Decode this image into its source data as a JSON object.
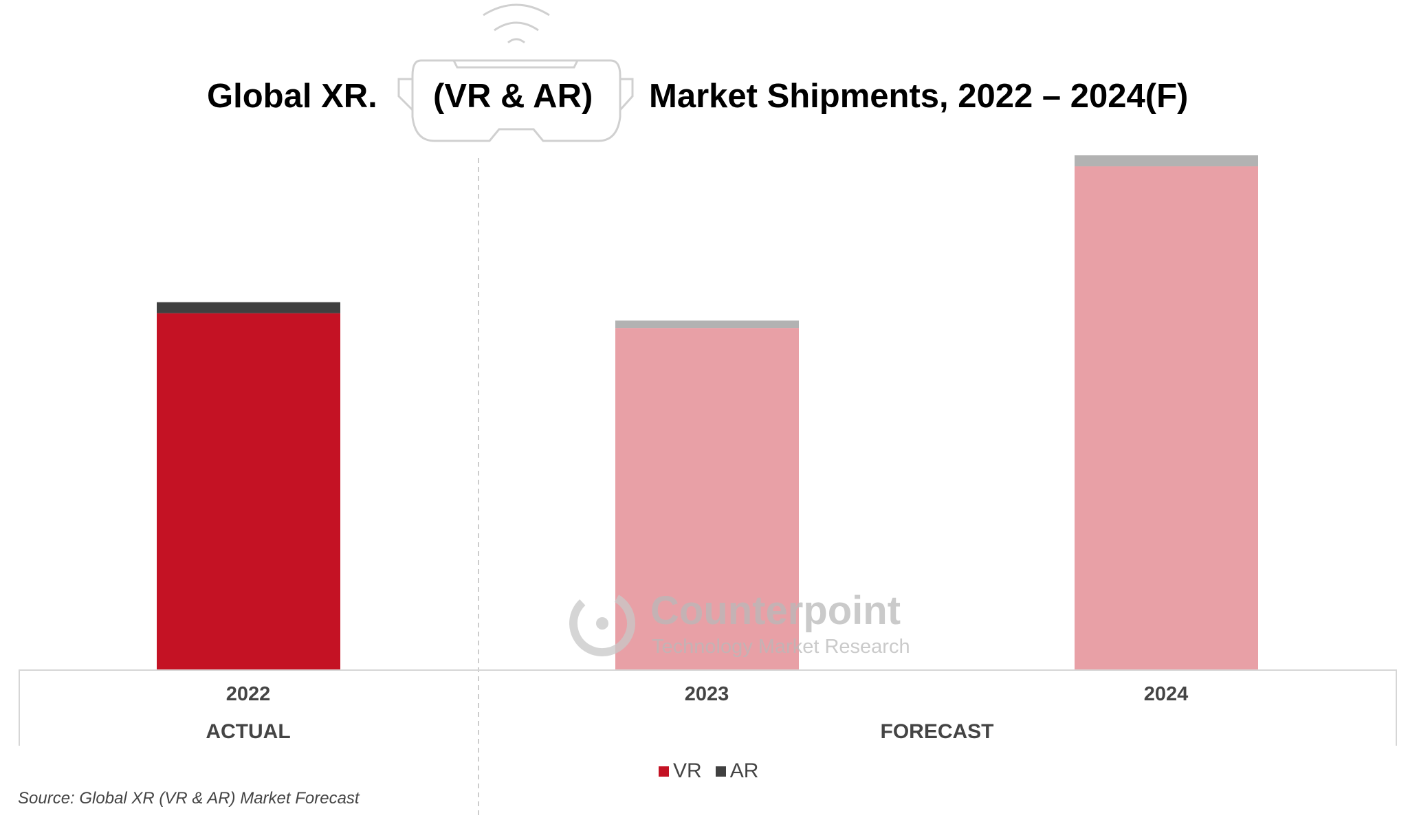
{
  "chart_data": {
    "type": "bar",
    "stacked": true,
    "title_parts": [
      "Global XR.",
      "(VR & AR)",
      "Market Shipments, 2022 – 2024(F)"
    ],
    "categories": [
      "2022",
      "2023",
      "2024"
    ],
    "series": [
      {
        "name": "VR",
        "values": [
          97,
          93,
          137
        ]
      },
      {
        "name": "AR",
        "values": [
          3,
          2,
          3
        ]
      }
    ],
    "ylim": [
      0,
      140
    ],
    "grid": false,
    "period_labels": [
      "ACTUAL",
      "FORECAST"
    ],
    "legend_position": "bottom",
    "colors": {
      "VR_actual": "#c41224",
      "AR_actual": "#404040",
      "VR_forecast": "#e8a0a6",
      "AR_forecast": "#b2b2b2"
    }
  },
  "source": "Source: Global XR (VR & AR) Market Forecast",
  "watermark": {
    "brand": "Counterpoint",
    "tagline": "Technology Market Research"
  }
}
